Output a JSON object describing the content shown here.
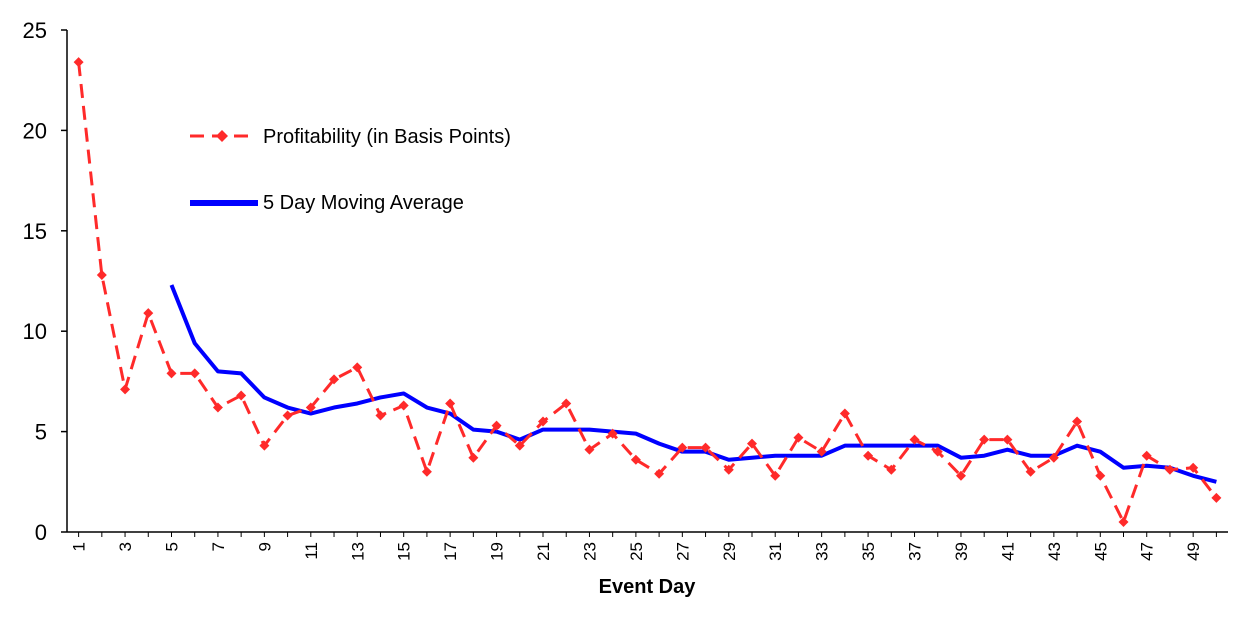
{
  "chart_data": {
    "type": "line",
    "title": "",
    "xlabel": "Event Day",
    "ylabel": "",
    "ylim": [
      0,
      25
    ],
    "yticks": [
      "0",
      "5",
      "10",
      "15",
      "20",
      "25"
    ],
    "xticks": [
      "1",
      "3",
      "5",
      "7",
      "9",
      "11",
      "13",
      "15",
      "17",
      "19",
      "21",
      "23",
      "25",
      "27",
      "29",
      "31",
      "33",
      "35",
      "37",
      "39",
      "41",
      "43",
      "45",
      "47",
      "49"
    ],
    "x": [
      1,
      2,
      3,
      4,
      5,
      6,
      7,
      8,
      9,
      10,
      11,
      12,
      13,
      14,
      15,
      16,
      17,
      18,
      19,
      20,
      21,
      22,
      23,
      24,
      25,
      26,
      27,
      28,
      29,
      30,
      31,
      32,
      33,
      34,
      35,
      36,
      37,
      38,
      39,
      40,
      41,
      42,
      43,
      44,
      45,
      46,
      47,
      48,
      49,
      50
    ],
    "legend_position": "upper-left inside plot",
    "grid": false,
    "series": [
      {
        "name": "Profitability (in Basis Points)",
        "color": "#ff2a2a",
        "style": "dashed-with-diamond-markers",
        "values": [
          23.4,
          12.8,
          7.1,
          10.9,
          7.9,
          7.9,
          6.2,
          6.8,
          4.3,
          5.8,
          6.2,
          7.6,
          8.2,
          5.8,
          6.3,
          3.0,
          6.4,
          3.7,
          5.3,
          4.3,
          5.5,
          6.4,
          4.1,
          4.9,
          3.6,
          2.9,
          4.2,
          4.2,
          3.1,
          4.4,
          2.8,
          4.7,
          4.0,
          5.9,
          3.8,
          3.1,
          4.6,
          4.0,
          2.8,
          4.6,
          4.6,
          3.0,
          3.7,
          5.5,
          2.8,
          0.5,
          3.8,
          3.1,
          3.2,
          1.7
        ]
      },
      {
        "name": "5 Day Moving Average",
        "color": "#0000ff",
        "style": "solid",
        "values": [
          null,
          null,
          null,
          null,
          12.3,
          9.4,
          8.0,
          7.9,
          6.7,
          6.2,
          5.9,
          6.2,
          6.4,
          6.7,
          6.9,
          6.2,
          5.9,
          5.1,
          5.0,
          4.6,
          5.1,
          5.1,
          5.1,
          5.0,
          4.9,
          4.4,
          4.0,
          4.0,
          3.6,
          3.7,
          3.8,
          3.8,
          3.8,
          4.3,
          4.3,
          4.3,
          4.3,
          4.3,
          3.7,
          3.8,
          4.1,
          3.8,
          3.8,
          4.3,
          4.0,
          3.2,
          3.3,
          3.2,
          2.8,
          2.5
        ]
      }
    ]
  }
}
